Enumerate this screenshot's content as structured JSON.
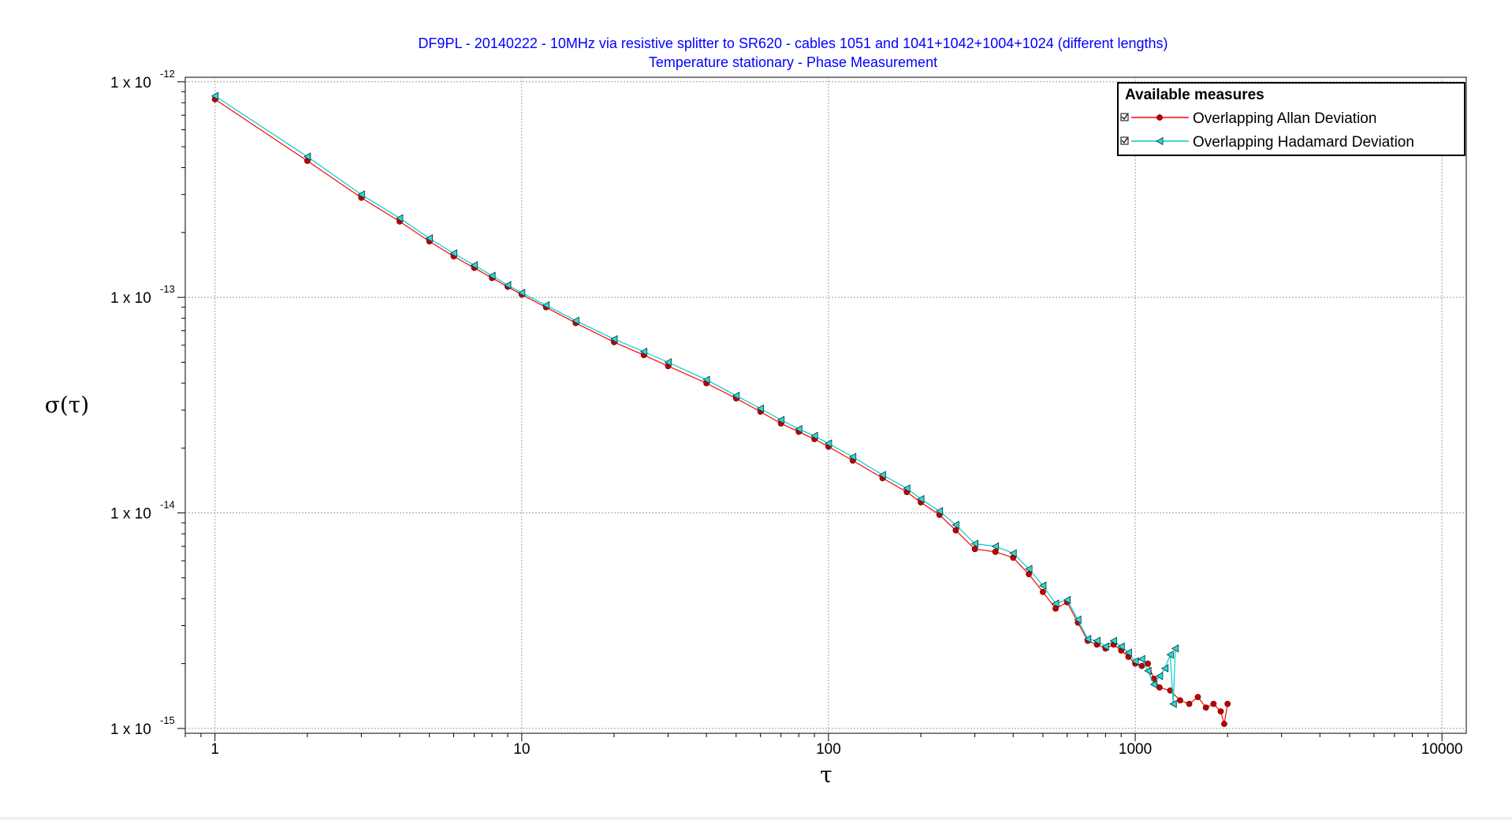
{
  "window": {
    "bottom_bar_color": "#f0f0f0"
  },
  "chart_data": {
    "type": "line",
    "title": "DF9PL - 20140222 - 10MHz via resistive splitter to SR620 - cables 1051 and 1041+1042+1004+1024 (different lengths)",
    "subtitle": "Temperature stationary - Phase Measurement",
    "title_color": "#0000ff",
    "xlabel": "τ",
    "ylabel": "σ(τ)",
    "x_scale": "log",
    "y_scale": "log",
    "xlim": [
      0.8,
      12000
    ],
    "ylim": [
      9.5e-16,
      1.05e-12
    ],
    "x_ticks": [
      {
        "value": 1,
        "label": "1"
      },
      {
        "value": 10,
        "label": "10"
      },
      {
        "value": 100,
        "label": "100"
      },
      {
        "value": 1000,
        "label": "1000"
      },
      {
        "value": 10000,
        "label": "10000"
      }
    ],
    "y_ticks": [
      {
        "value": 1e-12,
        "mantissa": "1 x 10",
        "exponent": "-12"
      },
      {
        "value": 1e-13,
        "mantissa": "1 x 10",
        "exponent": "-13"
      },
      {
        "value": 1e-14,
        "mantissa": "1 x 10",
        "exponent": "-14"
      },
      {
        "value": 1e-15,
        "mantissa": "1 x 10",
        "exponent": "-15"
      }
    ],
    "grid": true,
    "legend": {
      "title": "Available measures",
      "placement": "top-right",
      "entries": [
        "Overlapping Allan Deviation",
        "Overlapping Hadamard Deviation"
      ]
    },
    "series": [
      {
        "name": "Overlapping Allan Deviation",
        "color": "#ff0000",
        "marker_fill": "#c00000",
        "marker": "circle",
        "points": [
          [
            1,
            8.3e-13
          ],
          [
            2,
            4.3e-13
          ],
          [
            3,
            2.9e-13
          ],
          [
            4,
            2.25e-13
          ],
          [
            5,
            1.82e-13
          ],
          [
            6,
            1.55e-13
          ],
          [
            7,
            1.37e-13
          ],
          [
            8,
            1.23e-13
          ],
          [
            9,
            1.12e-13
          ],
          [
            10,
            1.03e-13
          ],
          [
            12,
            9e-14
          ],
          [
            15,
            7.6e-14
          ],
          [
            20,
            6.2e-14
          ],
          [
            25,
            5.4e-14
          ],
          [
            30,
            4.8e-14
          ],
          [
            40,
            4e-14
          ],
          [
            50,
            3.4e-14
          ],
          [
            60,
            2.95e-14
          ],
          [
            70,
            2.6e-14
          ],
          [
            80,
            2.38e-14
          ],
          [
            90,
            2.2e-14
          ],
          [
            100,
            2.03e-14
          ],
          [
            120,
            1.75e-14
          ],
          [
            150,
            1.45e-14
          ],
          [
            180,
            1.25e-14
          ],
          [
            200,
            1.12e-14
          ],
          [
            230,
            9.8e-15
          ],
          [
            260,
            8.3e-15
          ],
          [
            300,
            6.8e-15
          ],
          [
            350,
            6.6e-15
          ],
          [
            400,
            6.2e-15
          ],
          [
            450,
            5.2e-15
          ],
          [
            500,
            4.3e-15
          ],
          [
            550,
            3.6e-15
          ],
          [
            600,
            3.85e-15
          ],
          [
            650,
            3.1e-15
          ],
          [
            700,
            2.55e-15
          ],
          [
            750,
            2.45e-15
          ],
          [
            800,
            2.35e-15
          ],
          [
            850,
            2.45e-15
          ],
          [
            900,
            2.3e-15
          ],
          [
            950,
            2.15e-15
          ],
          [
            1000,
            2e-15
          ],
          [
            1050,
            1.95e-15
          ],
          [
            1100,
            2e-15
          ],
          [
            1150,
            1.7e-15
          ],
          [
            1200,
            1.55e-15
          ],
          [
            1300,
            1.5e-15
          ],
          [
            1400,
            1.35e-15
          ],
          [
            1500,
            1.3e-15
          ],
          [
            1600,
            1.4e-15
          ],
          [
            1700,
            1.25e-15
          ],
          [
            1800,
            1.3e-15
          ],
          [
            1900,
            1.2e-15
          ],
          [
            1950,
            1.05e-15
          ],
          [
            2000,
            1.3e-15
          ]
        ]
      },
      {
        "name": "Overlapping Hadamard Deviation",
        "color": "#00cccc",
        "marker_fill": "#33d6d6",
        "marker": "triangle-left",
        "points": [
          [
            1,
            8.6e-13
          ],
          [
            2,
            4.5e-13
          ],
          [
            3,
            3e-13
          ],
          [
            4,
            2.33e-13
          ],
          [
            5,
            1.88e-13
          ],
          [
            6,
            1.6e-13
          ],
          [
            7,
            1.41e-13
          ],
          [
            8,
            1.26e-13
          ],
          [
            9,
            1.14e-13
          ],
          [
            10,
            1.05e-13
          ],
          [
            12,
            9.2e-14
          ],
          [
            15,
            7.8e-14
          ],
          [
            20,
            6.4e-14
          ],
          [
            25,
            5.6e-14
          ],
          [
            30,
            5e-14
          ],
          [
            40,
            4.15e-14
          ],
          [
            50,
            3.5e-14
          ],
          [
            60,
            3.05e-14
          ],
          [
            70,
            2.7e-14
          ],
          [
            80,
            2.45e-14
          ],
          [
            90,
            2.28e-14
          ],
          [
            100,
            2.1e-14
          ],
          [
            120,
            1.82e-14
          ],
          [
            150,
            1.5e-14
          ],
          [
            180,
            1.3e-14
          ],
          [
            200,
            1.16e-14
          ],
          [
            230,
            1.02e-14
          ],
          [
            260,
            8.8e-15
          ],
          [
            300,
            7.2e-15
          ],
          [
            350,
            7e-15
          ],
          [
            400,
            6.5e-15
          ],
          [
            450,
            5.5e-15
          ],
          [
            500,
            4.6e-15
          ],
          [
            550,
            3.8e-15
          ],
          [
            600,
            3.95e-15
          ],
          [
            650,
            3.2e-15
          ],
          [
            700,
            2.6e-15
          ],
          [
            750,
            2.55e-15
          ],
          [
            800,
            2.4e-15
          ],
          [
            850,
            2.55e-15
          ],
          [
            900,
            2.4e-15
          ],
          [
            950,
            2.25e-15
          ],
          [
            1000,
            2.05e-15
          ],
          [
            1050,
            2.1e-15
          ],
          [
            1100,
            1.85e-15
          ],
          [
            1150,
            1.6e-15
          ],
          [
            1200,
            1.75e-15
          ],
          [
            1250,
            1.9e-15
          ],
          [
            1300,
            2.2e-15
          ],
          [
            1330,
            1.3e-15
          ],
          [
            1350,
            2.35e-15
          ]
        ]
      }
    ]
  }
}
